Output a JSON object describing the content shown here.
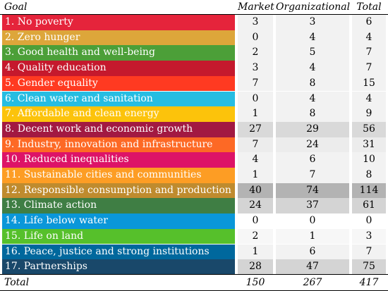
{
  "headers": {
    "goal": "Goal",
    "market": "Market",
    "organizational": "Organizational",
    "total": "Total"
  },
  "rows": [
    {
      "goal": "1. No poverty",
      "market": "3",
      "organizational": "3",
      "total": "6",
      "color": "#e5243b",
      "shade": "#f2f2f2"
    },
    {
      "goal": "2. Zero hunger",
      "market": "0",
      "organizational": "4",
      "total": "4",
      "color": "#dda63a",
      "shade": "#f2f2f2"
    },
    {
      "goal": "3. Good health and well-being",
      "market": "2",
      "organizational": "5",
      "total": "7",
      "color": "#4c9f38",
      "shade": "#f2f2f2"
    },
    {
      "goal": "4. Quality education",
      "market": "3",
      "organizational": "4",
      "total": "7",
      "color": "#c5192d",
      "shade": "#f2f2f2"
    },
    {
      "goal": "5. Gender equality",
      "market": "7",
      "organizational": "8",
      "total": "15",
      "color": "#ff3a21",
      "shade": "#f2f2f2"
    },
    {
      "goal": "6. Clean water and sanitation",
      "market": "0",
      "organizational": "4",
      "total": "4",
      "color": "#26bde2",
      "shade": "#f2f2f2"
    },
    {
      "goal": "7. Affordable and clean energy",
      "market": "1",
      "organizational": "8",
      "total": "9",
      "color": "#fcc30b",
      "shade": "#f2f2f2"
    },
    {
      "goal": "8. Decent work and economic growth",
      "market": "27",
      "organizational": "29",
      "total": "56",
      "color": "#a21942",
      "shade": "#d9d9d9"
    },
    {
      "goal": "9. Industry, innovation and infrastructure",
      "market": "7",
      "organizational": "24",
      "total": "31",
      "color": "#fd6925",
      "shade": "#ececec"
    },
    {
      "goal": "10. Reduced inequalities",
      "market": "4",
      "organizational": "6",
      "total": "10",
      "color": "#dd1367",
      "shade": "#f2f2f2"
    },
    {
      "goal": "11. Sustainable cities and communities",
      "market": "1",
      "organizational": "7",
      "total": "8",
      "color": "#fd9d24",
      "shade": "#f2f2f2"
    },
    {
      "goal": "12. Responsible consumption and production",
      "market": "40",
      "organizational": "74",
      "total": "114",
      "color": "#bf8b2e",
      "shade": "#b3b3b3"
    },
    {
      "goal": "13. Climate action",
      "market": "24",
      "organizational": "37",
      "total": "61",
      "color": "#3f7e44",
      "shade": "#d4d4d4"
    },
    {
      "goal": "14. Life below water",
      "market": "0",
      "organizational": "0",
      "total": "0",
      "color": "#0a97d9",
      "shade": "#ffffff"
    },
    {
      "goal": "15. Life on land",
      "market": "2",
      "organizational": "1",
      "total": "3",
      "color": "#56c02b",
      "shade": "#f7f7f7"
    },
    {
      "goal": "16. Peace, justice and strong institutions",
      "market": "1",
      "organizational": "6",
      "total": "7",
      "color": "#00689d",
      "shade": "#f2f2f2"
    },
    {
      "goal": "17. Partnerships",
      "market": "28",
      "organizational": "47",
      "total": "75",
      "color": "#19486a",
      "shade": "#d4d4d4"
    }
  ],
  "totals": {
    "label": "Total",
    "market": "150",
    "organizational": "267",
    "total": "417"
  }
}
